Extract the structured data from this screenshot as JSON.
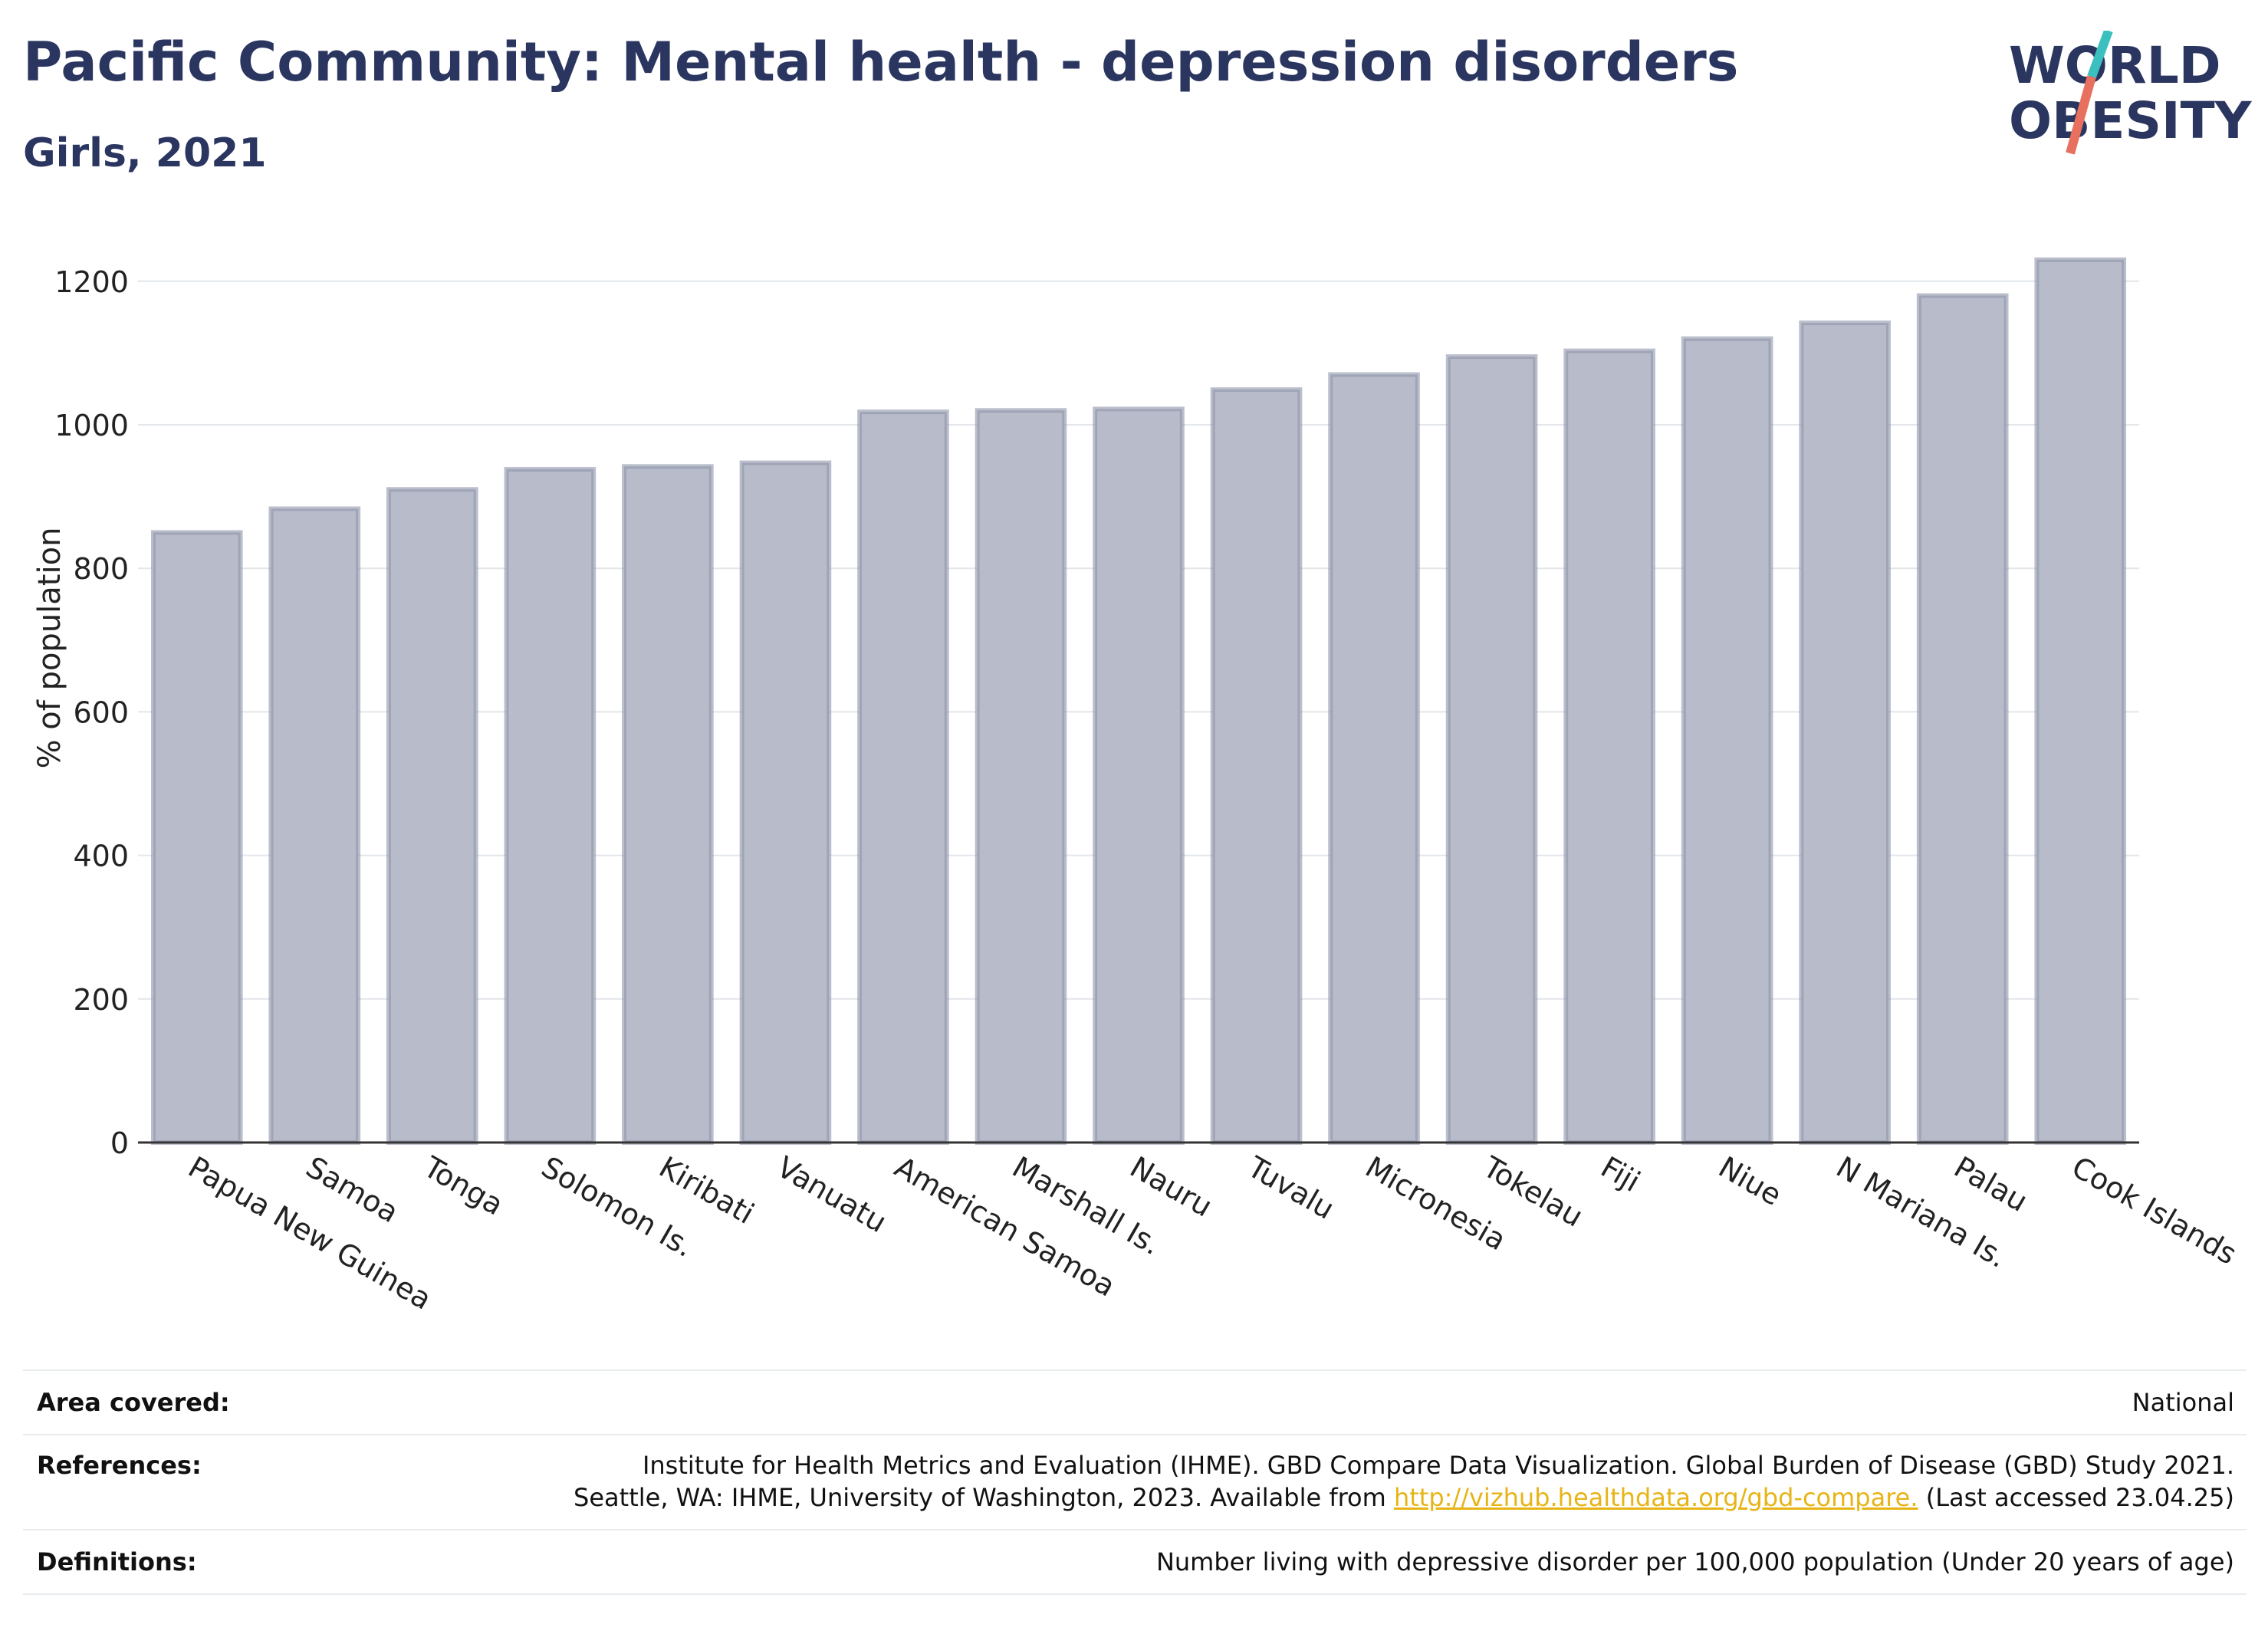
{
  "header": {
    "title": "Pacific Community: Mental health - depression disorders",
    "subtitle": "Girls, 2021"
  },
  "logo": {
    "line1": "WORLD",
    "line2": "OBESITY",
    "colors": {
      "text": "#2a3560",
      "teal": "#3bbfbf",
      "coral": "#e8705f"
    }
  },
  "chart_data": {
    "type": "bar",
    "ylabel": "% of population",
    "xlabel": "",
    "ylim": [
      0,
      1250
    ],
    "yticks": [
      0,
      200,
      400,
      600,
      800,
      1000,
      1200
    ],
    "grid": true,
    "bar_color": "#b8bcca",
    "bar_edge_color": "#8e94aa",
    "categories": [
      "Papua New Guinea",
      "Samoa",
      "Tonga",
      "Solomon Is.",
      "Kiribati",
      "Vanuatu",
      "American Samoa",
      "Marshall Is.",
      "Nauru",
      "Tuvalu",
      "Micronesia",
      "Tokelau",
      "Fiji",
      "Niue",
      "N Mariana Is.",
      "Palau",
      "Cook Islands"
    ],
    "values": [
      850,
      883,
      910,
      938,
      942,
      947,
      1018,
      1020,
      1022,
      1049,
      1070,
      1095,
      1103,
      1120,
      1142,
      1180,
      1230
    ]
  },
  "footer": {
    "area_label": "Area covered:",
    "area_value": "National",
    "references_label": "References:",
    "references_line1": "Institute for Health Metrics and Evaluation (IHME). GBD Compare Data Visualization. Global Burden of Disease (GBD) Study 2021.",
    "references_line2_pre": "Seattle, WA: IHME, University of Washington, 2023. Available from ",
    "references_link": "http://vizhub.healthdata.org/gbd-compare.",
    "references_line2_post": " (Last accessed 23.04.25)",
    "definitions_label": "Definitions:",
    "definitions_value": "Number living with depressive disorder per 100,000 population (Under 20 years of age)"
  }
}
